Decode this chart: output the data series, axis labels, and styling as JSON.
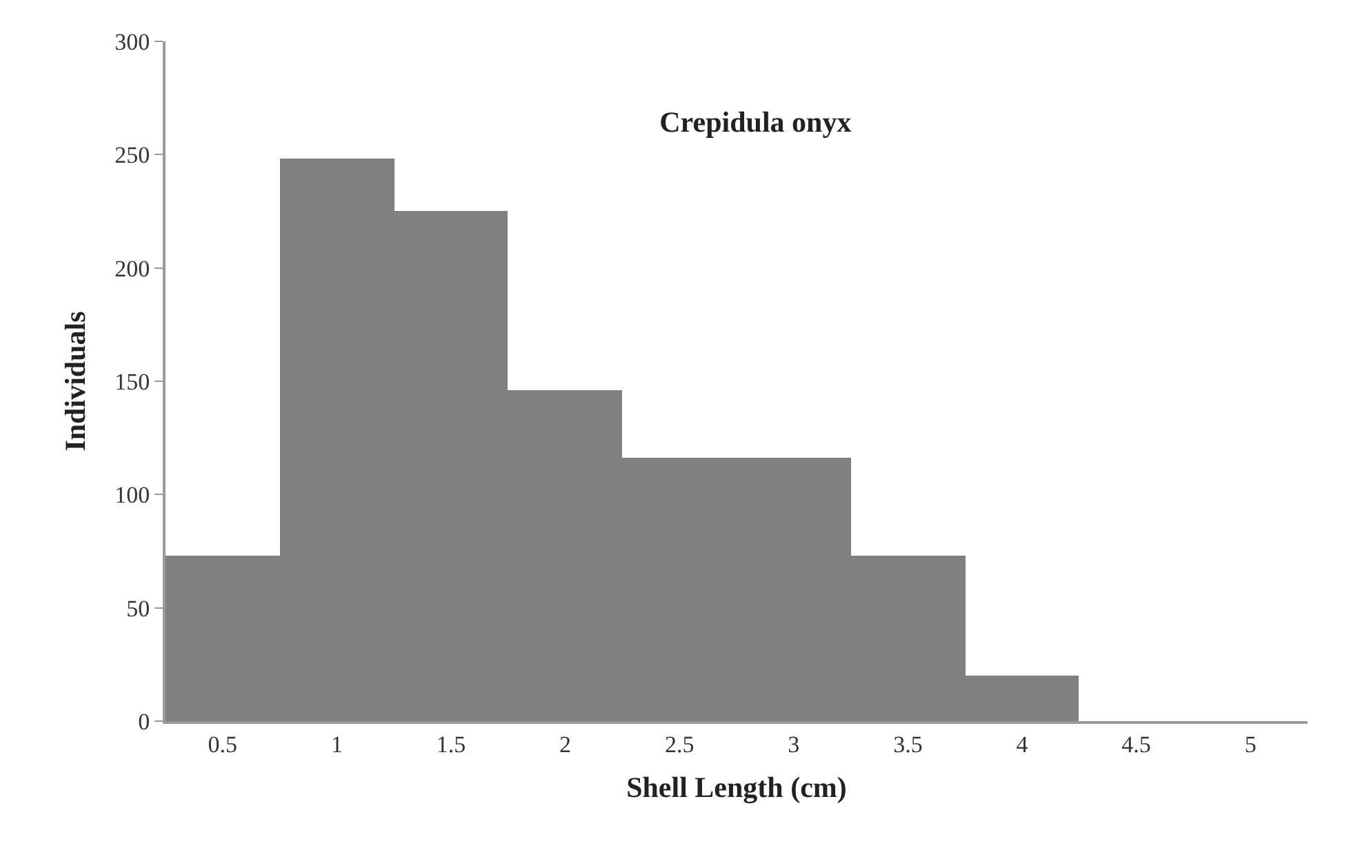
{
  "chart_data": {
    "type": "bar",
    "title": "Crepidula onyx",
    "xlabel": "Shell Length (cm)",
    "ylabel": "Individuals",
    "categories": [
      "0.5",
      "1",
      "1.5",
      "2",
      "2.5",
      "3",
      "3.5",
      "4",
      "4.5",
      "5"
    ],
    "values": [
      73,
      248,
      225,
      146,
      116,
      116,
      73,
      20,
      0,
      0
    ],
    "color": "#808080",
    "ylim": [
      0,
      300
    ],
    "yticks": [
      0,
      50,
      100,
      150,
      200,
      250,
      300
    ]
  }
}
